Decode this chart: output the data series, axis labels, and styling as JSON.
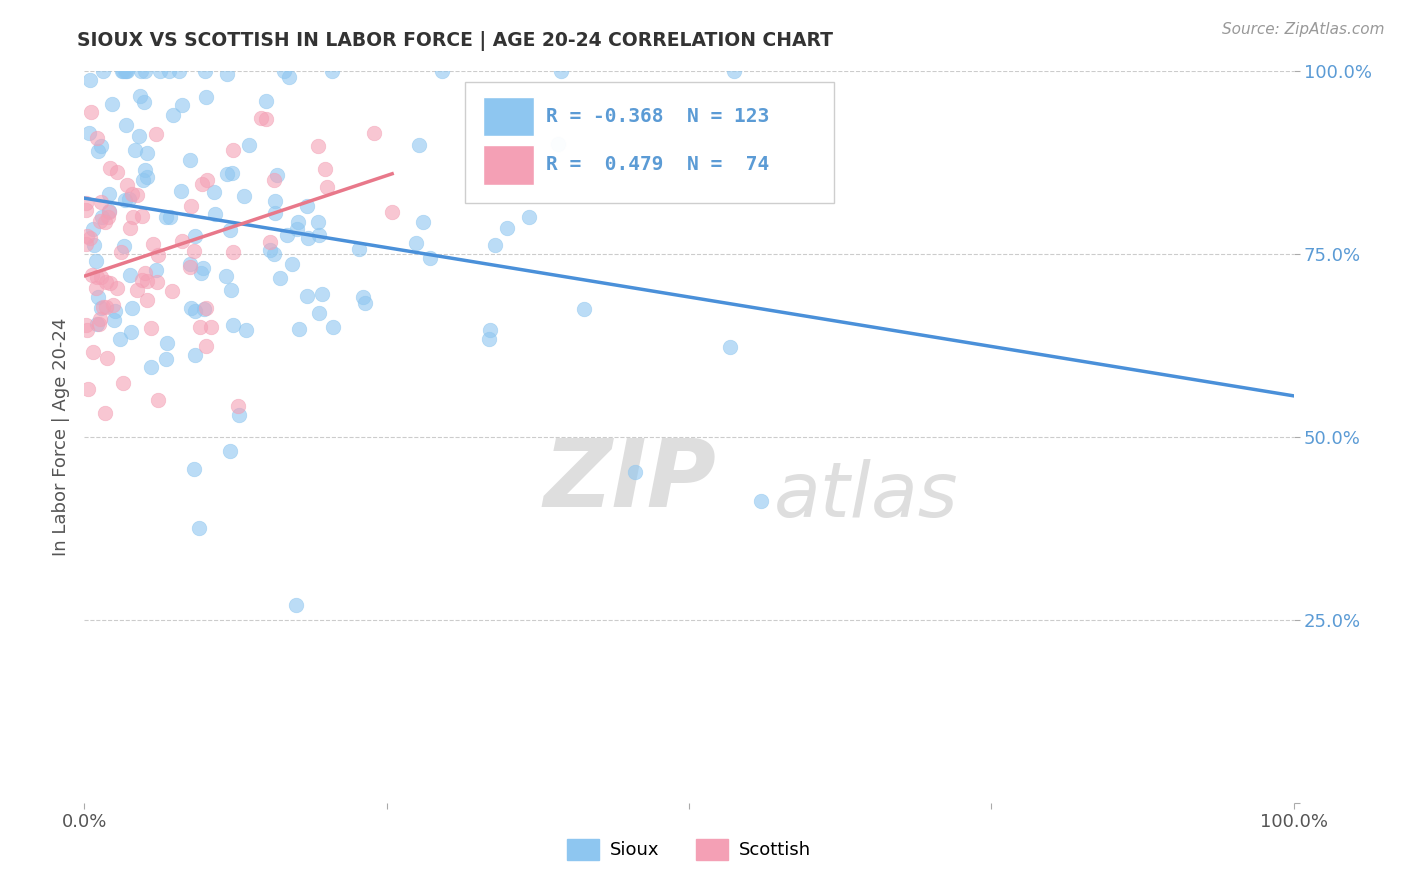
{
  "title": "SIOUX VS SCOTTISH IN LABOR FORCE | AGE 20-24 CORRELATION CHART",
  "source_text": "Source: ZipAtlas.com",
  "ylabel": "In Labor Force | Age 20-24",
  "sioux_color": "#8EC6F0",
  "scottish_color": "#F4A0B5",
  "sioux_line_color": "#4A90D9",
  "scottish_line_color": "#E8788A",
  "sioux_R": -0.368,
  "sioux_N": 123,
  "scottish_R": 0.479,
  "scottish_N": 74,
  "watermark_zip": "ZIP",
  "watermark_atlas": "atlas",
  "background_color": "#FFFFFF",
  "grid_color": "#CCCCCC",
  "tick_color": "#5B9BD5",
  "title_color": "#333333"
}
